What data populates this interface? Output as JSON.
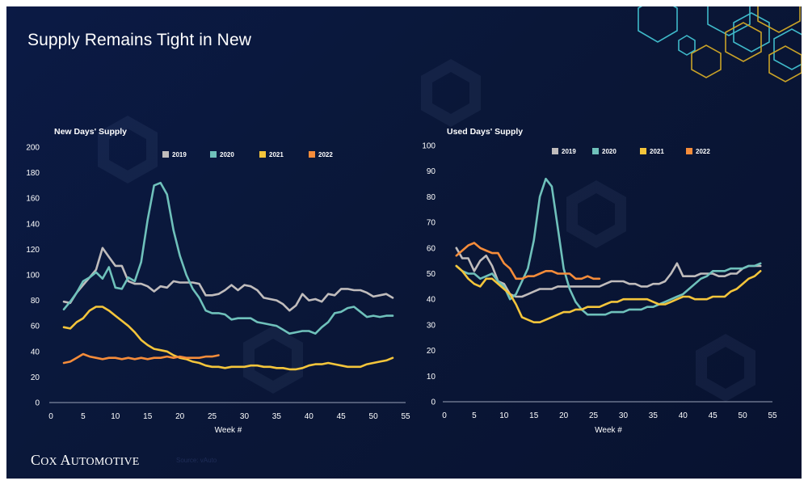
{
  "slide": {
    "title": "Supply Remains Tight in New",
    "logo": "Cox Automotive",
    "source": "Source: vAuto",
    "colors": {
      "background": "#0a1738",
      "hex_outline_1": "#c9a227",
      "hex_outline_2": "#3fb9c9"
    }
  },
  "chart_data": [
    {
      "type": "line",
      "title": "New Days' Supply",
      "xlabel": "Week #",
      "ylabel": "",
      "xlim": [
        0,
        55
      ],
      "ylim": [
        0,
        200
      ],
      "xticks": [
        0,
        5,
        10,
        15,
        20,
        25,
        30,
        35,
        40,
        45,
        50,
        55
      ],
      "yticks": [
        0,
        20,
        40,
        60,
        80,
        100,
        120,
        140,
        160,
        180,
        200
      ],
      "legend_position": "top-center",
      "grid": false,
      "series": [
        {
          "name": "2019",
          "color": "#c0bcbc",
          "x": [
            2,
            3,
            4,
            5,
            6,
            7,
            8,
            9,
            10,
            11,
            12,
            13,
            14,
            15,
            16,
            17,
            18,
            19,
            20,
            21,
            22,
            23,
            24,
            25,
            26,
            27,
            28,
            29,
            30,
            31,
            32,
            33,
            34,
            35,
            36,
            37,
            38,
            39,
            40,
            41,
            42,
            43,
            44,
            45,
            46,
            47,
            48,
            49,
            50,
            51,
            52,
            53
          ],
          "y": [
            79,
            78,
            86,
            92,
            98,
            104,
            121,
            114,
            107,
            107,
            95,
            93,
            93,
            91,
            87,
            91,
            90,
            95,
            94,
            94,
            94,
            93,
            84,
            84,
            85,
            88,
            92,
            88,
            92,
            91,
            88,
            82,
            81,
            80,
            77,
            72,
            76,
            85,
            80,
            81,
            79,
            85,
            84,
            89,
            89,
            88,
            88,
            86,
            83,
            84,
            85,
            82
          ]
        },
        {
          "name": "2020",
          "color": "#6fc1bb",
          "x": [
            2,
            3,
            4,
            5,
            6,
            7,
            8,
            9,
            10,
            11,
            12,
            13,
            14,
            15,
            16,
            17,
            18,
            19,
            20,
            21,
            22,
            23,
            24,
            25,
            26,
            27,
            28,
            29,
            30,
            31,
            32,
            33,
            34,
            35,
            36,
            37,
            38,
            39,
            40,
            41,
            42,
            43,
            44,
            45,
            46,
            47,
            48,
            49,
            50,
            51,
            52,
            53
          ],
          "y": [
            73,
            79,
            86,
            95,
            98,
            102,
            97,
            106,
            90,
            89,
            98,
            95,
            110,
            143,
            170,
            172,
            163,
            135,
            115,
            100,
            89,
            82,
            72,
            70,
            70,
            69,
            65,
            66,
            66,
            66,
            63,
            62,
            61,
            60,
            57,
            54,
            55,
            56,
            56,
            54,
            59,
            63,
            70,
            71,
            74,
            75,
            71,
            67,
            68,
            67,
            68,
            68
          ]
        },
        {
          "name": "2021",
          "color": "#f4c53b",
          "x": [
            2,
            3,
            4,
            5,
            6,
            7,
            8,
            9,
            10,
            11,
            12,
            13,
            14,
            15,
            16,
            17,
            18,
            19,
            20,
            21,
            22,
            23,
            24,
            25,
            26,
            27,
            28,
            29,
            30,
            31,
            32,
            33,
            34,
            35,
            36,
            37,
            38,
            39,
            40,
            41,
            42,
            43,
            44,
            45,
            46,
            47,
            48,
            49,
            50,
            51,
            52,
            53
          ],
          "y": [
            59,
            58,
            63,
            66,
            72,
            75,
            75,
            72,
            68,
            64,
            60,
            55,
            49,
            45,
            42,
            41,
            40,
            37,
            35,
            34,
            32,
            31,
            29,
            28,
            28,
            27,
            28,
            28,
            28,
            29,
            29,
            28,
            28,
            27,
            27,
            26,
            26,
            27,
            29,
            30,
            30,
            31,
            30,
            29,
            28,
            28,
            28,
            30,
            31,
            32,
            33,
            35
          ]
        },
        {
          "name": "2022",
          "color": "#f58c3a",
          "x": [
            2,
            3,
            4,
            5,
            6,
            7,
            8,
            9,
            10,
            11,
            12,
            13,
            14,
            15,
            16,
            17,
            18,
            19,
            20,
            21,
            22,
            23,
            24,
            25,
            26
          ],
          "y": [
            31,
            32,
            35,
            38,
            36,
            35,
            34,
            35,
            35,
            34,
            35,
            34,
            35,
            34,
            35,
            35,
            36,
            35,
            36,
            35,
            35,
            35,
            36,
            36,
            37
          ]
        }
      ]
    },
    {
      "type": "line",
      "title": "Used Days' Supply",
      "xlabel": "Week #",
      "ylabel": "",
      "xlim": [
        0,
        55
      ],
      "ylim": [
        0,
        100
      ],
      "xticks": [
        0,
        5,
        10,
        15,
        20,
        25,
        30,
        35,
        40,
        45,
        50,
        55
      ],
      "yticks": [
        0,
        10,
        20,
        30,
        40,
        50,
        60,
        70,
        80,
        90,
        100
      ],
      "legend_position": "top-center",
      "grid": false,
      "series": [
        {
          "name": "2019",
          "color": "#c0bcbc",
          "x": [
            2,
            3,
            4,
            5,
            6,
            7,
            8,
            9,
            10,
            11,
            12,
            13,
            14,
            15,
            16,
            17,
            18,
            19,
            20,
            21,
            22,
            23,
            24,
            25,
            26,
            27,
            28,
            29,
            30,
            31,
            32,
            33,
            34,
            35,
            36,
            37,
            38,
            39,
            40,
            41,
            42,
            43,
            44,
            45,
            46,
            47,
            48,
            49,
            50,
            51,
            52,
            53
          ],
          "y": [
            60,
            56,
            56,
            51,
            55,
            57,
            53,
            47,
            46,
            42,
            41,
            41,
            42,
            43,
            44,
            44,
            44,
            45,
            45,
            45,
            45,
            45,
            45,
            45,
            45,
            46,
            47,
            47,
            47,
            46,
            46,
            45,
            45,
            46,
            46,
            47,
            50,
            54,
            49,
            49,
            49,
            50,
            50,
            50,
            49,
            49,
            50,
            50,
            52,
            53,
            53,
            53
          ]
        },
        {
          "name": "2020",
          "color": "#6fc1bb",
          "x": [
            2,
            3,
            4,
            5,
            6,
            7,
            8,
            9,
            10,
            11,
            12,
            13,
            14,
            15,
            16,
            17,
            18,
            19,
            20,
            21,
            22,
            23,
            24,
            25,
            26,
            27,
            28,
            29,
            30,
            31,
            32,
            33,
            34,
            35,
            36,
            37,
            38,
            39,
            40,
            41,
            42,
            43,
            44,
            45,
            46,
            47,
            48,
            49,
            50,
            51,
            52,
            53
          ],
          "y": [
            53,
            51,
            50,
            50,
            48,
            49,
            50,
            47,
            45,
            40,
            42,
            47,
            52,
            63,
            80,
            87,
            84,
            68,
            52,
            44,
            39,
            36,
            34,
            34,
            34,
            34,
            35,
            35,
            35,
            36,
            36,
            36,
            37,
            37,
            38,
            39,
            40,
            41,
            42,
            44,
            46,
            48,
            49,
            51,
            51,
            51,
            52,
            52,
            52,
            53,
            53,
            54
          ]
        },
        {
          "name": "2021",
          "color": "#f4c53b",
          "x": [
            2,
            3,
            4,
            5,
            6,
            7,
            8,
            9,
            10,
            11,
            12,
            13,
            14,
            15,
            16,
            17,
            18,
            19,
            20,
            21,
            22,
            23,
            24,
            25,
            26,
            27,
            28,
            29,
            30,
            31,
            32,
            33,
            34,
            35,
            36,
            37,
            38,
            39,
            40,
            41,
            42,
            43,
            44,
            45,
            46,
            47,
            48,
            49,
            50,
            51,
            52,
            53
          ],
          "y": [
            53,
            51,
            48,
            46,
            45,
            48,
            48,
            46,
            44,
            42,
            38,
            33,
            32,
            31,
            31,
            32,
            33,
            34,
            35,
            35,
            36,
            36,
            37,
            37,
            37,
            38,
            39,
            39,
            40,
            40,
            40,
            40,
            40,
            39,
            38,
            38,
            39,
            40,
            41,
            41,
            40,
            40,
            40,
            41,
            41,
            41,
            43,
            44,
            46,
            48,
            49,
            51
          ]
        },
        {
          "name": "2022",
          "color": "#f58c3a",
          "x": [
            2,
            3,
            4,
            5,
            6,
            7,
            8,
            9,
            10,
            11,
            12,
            13,
            14,
            15,
            16,
            17,
            18,
            19,
            20,
            21,
            22,
            23,
            24,
            25,
            26
          ],
          "y": [
            57,
            59,
            61,
            62,
            60,
            59,
            58,
            58,
            54,
            52,
            48,
            48,
            49,
            49,
            50,
            51,
            51,
            50,
            50,
            50,
            48,
            48,
            49,
            48,
            48
          ]
        }
      ]
    }
  ]
}
